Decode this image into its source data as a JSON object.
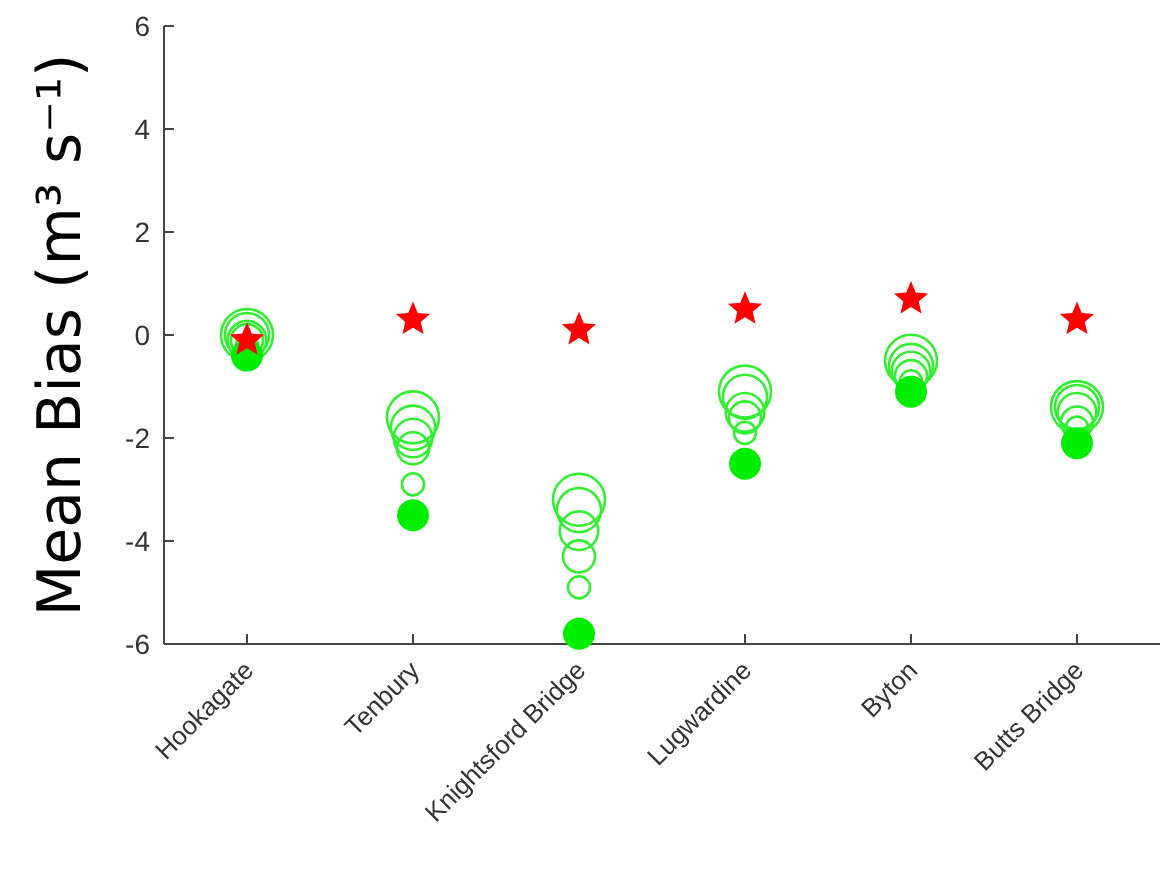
{
  "chart_data": {
    "type": "bubble",
    "ylabel": "Mean Bias (m³ s⁻¹)",
    "categories": [
      "Hookagate",
      "Tenbury",
      "Knightsford Bridge",
      "Lugwardine",
      "Byton",
      "Butts Bridge"
    ],
    "ylim": [
      -6,
      6
    ],
    "yticks": [
      -6,
      -4,
      -2,
      0,
      2,
      4,
      6
    ],
    "grid": false,
    "series": [
      {
        "color": "#33ee33",
        "values": [
          0.0,
          -1.6,
          -3.2,
          -1.1,
          -0.5,
          -1.4
        ],
        "sizes": [
          1,
          1,
          1,
          1,
          1,
          1
        ]
      },
      {
        "color": "#33ee33",
        "values": [
          0.0,
          -1.8,
          -3.4,
          -1.2,
          -0.6,
          -1.4
        ],
        "sizes": [
          0.72,
          0.72,
          0.72,
          0.72,
          0.72,
          0.72
        ]
      },
      {
        "color": "#33ee33",
        "values": [
          -0.1,
          -2.0,
          -3.8,
          -1.5,
          -0.7,
          -1.5
        ],
        "sizes": [
          0.55,
          0.55,
          0.55,
          0.55,
          0.55,
          0.55
        ]
      },
      {
        "color": "#33ee33",
        "values": [
          -0.1,
          -2.2,
          -4.3,
          -1.6,
          -0.8,
          -1.7
        ],
        "sizes": [
          0.38,
          0.38,
          0.38,
          0.38,
          0.38,
          0.38
        ]
      },
      {
        "color": "#33ee33",
        "values": [
          -0.2,
          -2.9,
          -4.9,
          -1.9,
          -0.9,
          -1.8
        ],
        "sizes": [
          0.18,
          0.18,
          0.18,
          0.18,
          0.18,
          0.18
        ]
      },
      {
        "type": "scatter",
        "marker": "circle",
        "color": "#00ee00",
        "values": [
          -0.4,
          -3.5,
          -5.8,
          -2.5,
          -1.1,
          -2.1
        ]
      },
      {
        "type": "scatter",
        "marker": "star",
        "color": "#ff0000",
        "values": [
          -0.1,
          0.3,
          0.1,
          0.5,
          0.7,
          0.3
        ]
      }
    ]
  }
}
